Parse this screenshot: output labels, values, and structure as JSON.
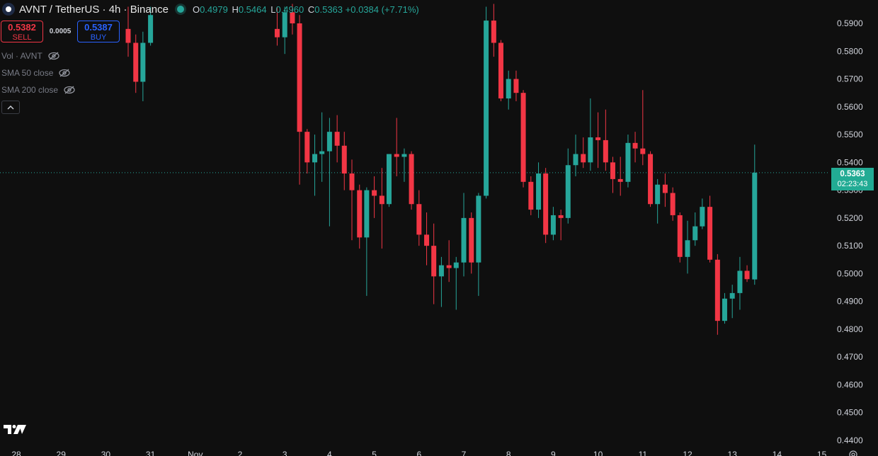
{
  "header": {
    "symbol_title": "AVNT / TetherUS · 4h · Binance",
    "ohlc": {
      "o_label": "O",
      "o": "0.4979",
      "h_label": "H",
      "h": "0.5464",
      "l_label": "L",
      "l": "0.4960",
      "c_label": "C",
      "c": "0.5363",
      "change": "+0.0384 (+7.71%)"
    }
  },
  "trade": {
    "sell_price": "0.5382",
    "sell_label": "SELL",
    "spread": "0.0005",
    "buy_price": "0.5387",
    "buy_label": "BUY"
  },
  "indicators": [
    {
      "label": "Vol · AVNT"
    },
    {
      "label": "SMA 50 close"
    },
    {
      "label": "SMA 200 close"
    }
  ],
  "current_price": {
    "price": "0.5363",
    "countdown": "02:23:43"
  },
  "colors": {
    "up": "#26a69a",
    "down": "#f23645",
    "background": "#0f0f0f",
    "price_tag": "#22ab94"
  },
  "icons": [
    "tradingview-logo-icon",
    "eye-off-icon",
    "chevron-up-icon",
    "gear-icon"
  ],
  "chart_data": {
    "type": "candlestick",
    "interval": "4h",
    "ylim": [
      0.44,
      0.59
    ],
    "y_ticks": [
      "0.5900",
      "0.5800",
      "0.5700",
      "0.5600",
      "0.5500",
      "0.5400",
      "0.5300",
      "0.5200",
      "0.5100",
      "0.5000",
      "0.4900",
      "0.4800",
      "0.4700",
      "0.4600",
      "0.4500",
      "0.4400"
    ],
    "x_ticks": [
      {
        "label": "28",
        "day": 0
      },
      {
        "label": "29",
        "day": 1
      },
      {
        "label": "30",
        "day": 2
      },
      {
        "label": "31",
        "day": 3
      },
      {
        "label": "Nov",
        "day": 4
      },
      {
        "label": "2",
        "day": 5
      },
      {
        "label": "3",
        "day": 6
      },
      {
        "label": "4",
        "day": 7
      },
      {
        "label": "5",
        "day": 8
      },
      {
        "label": "6",
        "day": 9
      },
      {
        "label": "7",
        "day": 10
      },
      {
        "label": "8",
        "day": 11
      },
      {
        "label": "9",
        "day": 12
      },
      {
        "label": "10",
        "day": 13
      },
      {
        "label": "11",
        "day": 14
      },
      {
        "label": "12",
        "day": 15
      },
      {
        "label": "13",
        "day": 16
      },
      {
        "label": "14",
        "day": 17
      },
      {
        "label": "15",
        "day": 18
      }
    ],
    "last_price_line": 0.5363,
    "candles": [
      {
        "t": 2.5,
        "o": 0.588,
        "h": 0.596,
        "l": 0.578,
        "c": 0.583
      },
      {
        "t": 2.67,
        "o": 0.583,
        "h": 0.586,
        "l": 0.565,
        "c": 0.569
      },
      {
        "t": 2.83,
        "o": 0.569,
        "h": 0.587,
        "l": 0.562,
        "c": 0.583
      },
      {
        "t": 3.0,
        "o": 0.583,
        "h": 0.596,
        "l": 0.582,
        "c": 0.593
      },
      {
        "t": 5.83,
        "o": 0.588,
        "h": 0.596,
        "l": 0.582,
        "c": 0.585
      },
      {
        "t": 6.0,
        "o": 0.585,
        "h": 0.596,
        "l": 0.579,
        "c": 0.594
      },
      {
        "t": 6.17,
        "o": 0.594,
        "h": 0.597,
        "l": 0.586,
        "c": 0.59
      },
      {
        "t": 6.33,
        "o": 0.59,
        "h": 0.593,
        "l": 0.532,
        "c": 0.551
      },
      {
        "t": 6.5,
        "o": 0.551,
        "h": 0.552,
        "l": 0.536,
        "c": 0.54
      },
      {
        "t": 6.67,
        "o": 0.54,
        "h": 0.55,
        "l": 0.528,
        "c": 0.543
      },
      {
        "t": 6.83,
        "o": 0.543,
        "h": 0.558,
        "l": 0.533,
        "c": 0.544
      },
      {
        "t": 7.0,
        "o": 0.544,
        "h": 0.556,
        "l": 0.517,
        "c": 0.551
      },
      {
        "t": 7.17,
        "o": 0.551,
        "h": 0.557,
        "l": 0.54,
        "c": 0.546
      },
      {
        "t": 7.33,
        "o": 0.546,
        "h": 0.551,
        "l": 0.53,
        "c": 0.536
      },
      {
        "t": 7.5,
        "o": 0.536,
        "h": 0.541,
        "l": 0.512,
        "c": 0.53
      },
      {
        "t": 7.67,
        "o": 0.53,
        "h": 0.532,
        "l": 0.509,
        "c": 0.513
      },
      {
        "t": 7.83,
        "o": 0.513,
        "h": 0.531,
        "l": 0.492,
        "c": 0.53
      },
      {
        "t": 8.0,
        "o": 0.53,
        "h": 0.535,
        "l": 0.52,
        "c": 0.528
      },
      {
        "t": 8.17,
        "o": 0.528,
        "h": 0.538,
        "l": 0.509,
        "c": 0.525
      },
      {
        "t": 8.33,
        "o": 0.525,
        "h": 0.543,
        "l": 0.524,
        "c": 0.543
      },
      {
        "t": 8.5,
        "o": 0.543,
        "h": 0.556,
        "l": 0.535,
        "c": 0.542
      },
      {
        "t": 8.67,
        "o": 0.542,
        "h": 0.545,
        "l": 0.533,
        "c": 0.543
      },
      {
        "t": 8.83,
        "o": 0.543,
        "h": 0.544,
        "l": 0.523,
        "c": 0.525
      },
      {
        "t": 9.0,
        "o": 0.525,
        "h": 0.53,
        "l": 0.51,
        "c": 0.514
      },
      {
        "t": 9.17,
        "o": 0.514,
        "h": 0.522,
        "l": 0.503,
        "c": 0.51
      },
      {
        "t": 9.33,
        "o": 0.51,
        "h": 0.518,
        "l": 0.489,
        "c": 0.499
      },
      {
        "t": 9.5,
        "o": 0.499,
        "h": 0.506,
        "l": 0.488,
        "c": 0.503
      },
      {
        "t": 9.67,
        "o": 0.503,
        "h": 0.512,
        "l": 0.497,
        "c": 0.502
      },
      {
        "t": 9.83,
        "o": 0.502,
        "h": 0.506,
        "l": 0.487,
        "c": 0.504
      },
      {
        "t": 10.0,
        "o": 0.504,
        "h": 0.529,
        "l": 0.499,
        "c": 0.52
      },
      {
        "t": 10.17,
        "o": 0.52,
        "h": 0.522,
        "l": 0.5,
        "c": 0.504
      },
      {
        "t": 10.33,
        "o": 0.504,
        "h": 0.529,
        "l": 0.492,
        "c": 0.528
      },
      {
        "t": 10.5,
        "o": 0.528,
        "h": 0.596,
        "l": 0.527,
        "c": 0.591
      },
      {
        "t": 10.67,
        "o": 0.591,
        "h": 0.597,
        "l": 0.578,
        "c": 0.583
      },
      {
        "t": 10.83,
        "o": 0.583,
        "h": 0.584,
        "l": 0.562,
        "c": 0.563
      },
      {
        "t": 11.0,
        "o": 0.563,
        "h": 0.573,
        "l": 0.559,
        "c": 0.57
      },
      {
        "t": 11.17,
        "o": 0.57,
        "h": 0.573,
        "l": 0.562,
        "c": 0.565
      },
      {
        "t": 11.33,
        "o": 0.565,
        "h": 0.566,
        "l": 0.531,
        "c": 0.533
      },
      {
        "t": 11.5,
        "o": 0.533,
        "h": 0.535,
        "l": 0.521,
        "c": 0.523
      },
      {
        "t": 11.67,
        "o": 0.523,
        "h": 0.54,
        "l": 0.52,
        "c": 0.536
      },
      {
        "t": 11.83,
        "o": 0.536,
        "h": 0.538,
        "l": 0.511,
        "c": 0.514
      },
      {
        "t": 12.0,
        "o": 0.514,
        "h": 0.524,
        "l": 0.512,
        "c": 0.521
      },
      {
        "t": 12.17,
        "o": 0.521,
        "h": 0.523,
        "l": 0.512,
        "c": 0.52
      },
      {
        "t": 12.33,
        "o": 0.52,
        "h": 0.545,
        "l": 0.518,
        "c": 0.539
      },
      {
        "t": 12.5,
        "o": 0.539,
        "h": 0.55,
        "l": 0.535,
        "c": 0.543
      },
      {
        "t": 12.67,
        "o": 0.543,
        "h": 0.549,
        "l": 0.538,
        "c": 0.54
      },
      {
        "t": 12.83,
        "o": 0.54,
        "h": 0.563,
        "l": 0.537,
        "c": 0.549
      },
      {
        "t": 13.0,
        "o": 0.549,
        "h": 0.558,
        "l": 0.538,
        "c": 0.548
      },
      {
        "t": 13.17,
        "o": 0.548,
        "h": 0.559,
        "l": 0.537,
        "c": 0.54
      },
      {
        "t": 13.33,
        "o": 0.54,
        "h": 0.542,
        "l": 0.529,
        "c": 0.534
      },
      {
        "t": 13.5,
        "o": 0.534,
        "h": 0.542,
        "l": 0.528,
        "c": 0.533
      },
      {
        "t": 13.67,
        "o": 0.533,
        "h": 0.55,
        "l": 0.531,
        "c": 0.547
      },
      {
        "t": 13.83,
        "o": 0.547,
        "h": 0.551,
        "l": 0.54,
        "c": 0.545
      },
      {
        "t": 14.0,
        "o": 0.545,
        "h": 0.566,
        "l": 0.539,
        "c": 0.543
      },
      {
        "t": 14.17,
        "o": 0.543,
        "h": 0.544,
        "l": 0.524,
        "c": 0.525
      },
      {
        "t": 14.33,
        "o": 0.525,
        "h": 0.534,
        "l": 0.518,
        "c": 0.532
      },
      {
        "t": 14.5,
        "o": 0.532,
        "h": 0.536,
        "l": 0.524,
        "c": 0.529
      },
      {
        "t": 14.67,
        "o": 0.529,
        "h": 0.531,
        "l": 0.519,
        "c": 0.521
      },
      {
        "t": 14.83,
        "o": 0.521,
        "h": 0.522,
        "l": 0.504,
        "c": 0.506
      },
      {
        "t": 15.0,
        "o": 0.506,
        "h": 0.519,
        "l": 0.5,
        "c": 0.512
      },
      {
        "t": 15.17,
        "o": 0.512,
        "h": 0.522,
        "l": 0.51,
        "c": 0.517
      },
      {
        "t": 15.33,
        "o": 0.517,
        "h": 0.527,
        "l": 0.516,
        "c": 0.524
      },
      {
        "t": 15.5,
        "o": 0.524,
        "h": 0.528,
        "l": 0.504,
        "c": 0.505
      },
      {
        "t": 15.67,
        "o": 0.505,
        "h": 0.507,
        "l": 0.478,
        "c": 0.483
      },
      {
        "t": 15.83,
        "o": 0.483,
        "h": 0.493,
        "l": 0.482,
        "c": 0.491
      },
      {
        "t": 16.0,
        "o": 0.491,
        "h": 0.496,
        "l": 0.484,
        "c": 0.493
      },
      {
        "t": 16.17,
        "o": 0.493,
        "h": 0.506,
        "l": 0.487,
        "c": 0.501
      },
      {
        "t": 16.33,
        "o": 0.501,
        "h": 0.503,
        "l": 0.497,
        "c": 0.498
      },
      {
        "t": 16.5,
        "o": 0.4979,
        "h": 0.5464,
        "l": 0.496,
        "c": 0.5363
      }
    ]
  }
}
